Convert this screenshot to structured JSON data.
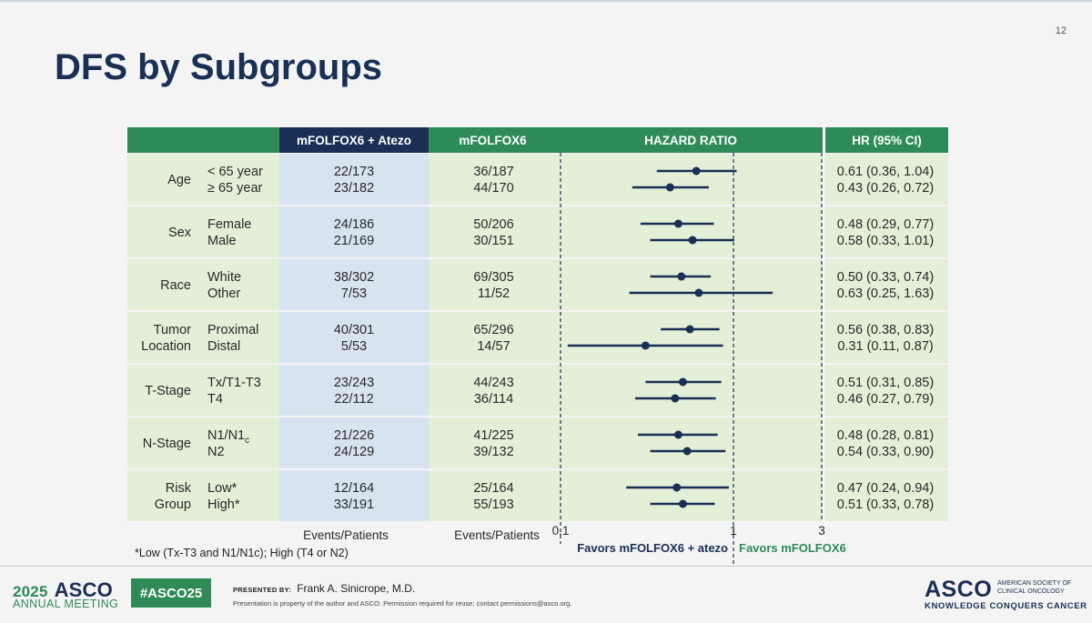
{
  "slide": {
    "number": "12",
    "title": "DFS by Subgroups",
    "footnote": "*Low (Tx-T3 and N1/N1c); High (T4 or N2)"
  },
  "colors": {
    "header_green": "#2e8b57",
    "header_navy": "#1a2f55",
    "row_green": "#e3efd7",
    "atezo_column": "#d8e3f0",
    "marker": "#1a2f55",
    "favors_control_text": "#2e8b57"
  },
  "chart_data": {
    "type": "forest",
    "title": "HAZARD RATIO",
    "x_scale": "log",
    "xlim": [
      0.1,
      3
    ],
    "x_ticks": [
      "0.1",
      "1",
      "3"
    ],
    "reference_lines": [
      0.1,
      1,
      3
    ],
    "columns": {
      "group": "",
      "atezo": "mFOLFOX6 + Atezo",
      "control": "mFOLFOX6",
      "plot": "HAZARD RATIO",
      "hr": "HR (95% CI)"
    },
    "column_footers": {
      "atezo": "Events/Patients",
      "control": "Events/Patients"
    },
    "favors": {
      "left": "Favors mFOLFOX6 + atezo",
      "right": "Favors mFOLFOX6"
    },
    "groups": [
      {
        "name": [
          "Age"
        ],
        "rows": [
          {
            "sub": "< 65 year",
            "atezo": "22/173",
            "control": "36/187",
            "hr": 0.61,
            "lo": 0.36,
            "hi": 1.04,
            "hr_text": "0.61 (0.36, 1.04)"
          },
          {
            "sub": "≥ 65 year",
            "atezo": "23/182",
            "control": "44/170",
            "hr": 0.43,
            "lo": 0.26,
            "hi": 0.72,
            "hr_text": "0.43 (0.26, 0.72)"
          }
        ]
      },
      {
        "name": [
          "Sex"
        ],
        "rows": [
          {
            "sub": "Female",
            "atezo": "24/186",
            "control": "50/206",
            "hr": 0.48,
            "lo": 0.29,
            "hi": 0.77,
            "hr_text": "0.48 (0.29, 0.77)"
          },
          {
            "sub": "Male",
            "atezo": "21/169",
            "control": "30/151",
            "hr": 0.58,
            "lo": 0.33,
            "hi": 1.01,
            "hr_text": "0.58 (0.33, 1.01)"
          }
        ]
      },
      {
        "name": [
          "Race"
        ],
        "rows": [
          {
            "sub": "White",
            "atezo": "38/302",
            "control": "69/305",
            "hr": 0.5,
            "lo": 0.33,
            "hi": 0.74,
            "hr_text": "0.50 (0.33, 0.74)"
          },
          {
            "sub": "Other",
            "atezo": "7/53",
            "control": "11/52",
            "hr": 0.63,
            "lo": 0.25,
            "hi": 1.63,
            "hr_text": "0.63 (0.25, 1.63)"
          }
        ]
      },
      {
        "name": [
          "Tumor",
          "Location"
        ],
        "rows": [
          {
            "sub": "Proximal",
            "atezo": "40/301",
            "control": "65/296",
            "hr": 0.56,
            "lo": 0.38,
            "hi": 0.83,
            "hr_text": "0.56 (0.38, 0.83)"
          },
          {
            "sub": "Distal",
            "atezo": "5/53",
            "control": "14/57",
            "hr": 0.31,
            "lo": 0.11,
            "hi": 0.87,
            "hr_text": "0.31 (0.11, 0.87)"
          }
        ]
      },
      {
        "name": [
          "T-Stage"
        ],
        "rows": [
          {
            "sub": "Tx/T1-T3",
            "atezo": "23/243",
            "control": "44/243",
            "hr": 0.51,
            "lo": 0.31,
            "hi": 0.85,
            "hr_text": "0.51 (0.31, 0.85)"
          },
          {
            "sub": "T4",
            "atezo": "22/112",
            "control": "36/114",
            "hr": 0.46,
            "lo": 0.27,
            "hi": 0.79,
            "hr_text": "0.46 (0.27, 0.79)"
          }
        ]
      },
      {
        "name": [
          "N-Stage"
        ],
        "rows": [
          {
            "sub": "N1/N1",
            "sub_subscript": "c",
            "atezo": "21/226",
            "control": "41/225",
            "hr": 0.48,
            "lo": 0.28,
            "hi": 0.81,
            "hr_text": "0.48 (0.28, 0.81)"
          },
          {
            "sub": "N2",
            "atezo": "24/129",
            "control": "39/132",
            "hr": 0.54,
            "lo": 0.33,
            "hi": 0.9,
            "hr_text": "0.54 (0.33, 0.90)"
          }
        ]
      },
      {
        "name": [
          "Risk",
          "Group"
        ],
        "rows": [
          {
            "sub": "Low*",
            "atezo": "12/164",
            "control": "25/164",
            "hr": 0.47,
            "lo": 0.24,
            "hi": 0.94,
            "hr_text": "0.47 (0.24, 0.94)"
          },
          {
            "sub": "High*",
            "atezo": "33/191",
            "control": "55/193",
            "hr": 0.51,
            "lo": 0.33,
            "hi": 0.78,
            "hr_text": "0.51 (0.33, 0.78)"
          }
        ]
      }
    ]
  },
  "footer": {
    "meeting_year": "2025",
    "meeting_name": "ASCO",
    "meeting_sub": "ANNUAL MEETING",
    "hashtag": "#ASCO25",
    "presented_label": "PRESENTED BY:",
    "presenter": "Frank A. Sinicrope, M.D.",
    "disclaimer": "Presentation is property of the author and ASCO. Permission required for reuse; contact permissions@asco.org.",
    "logo": "ASCO",
    "society": "AMERICAN SOCIETY OF CLINICAL ONCOLOGY",
    "tagline": "KNOWLEDGE CONQUERS CANCER"
  }
}
